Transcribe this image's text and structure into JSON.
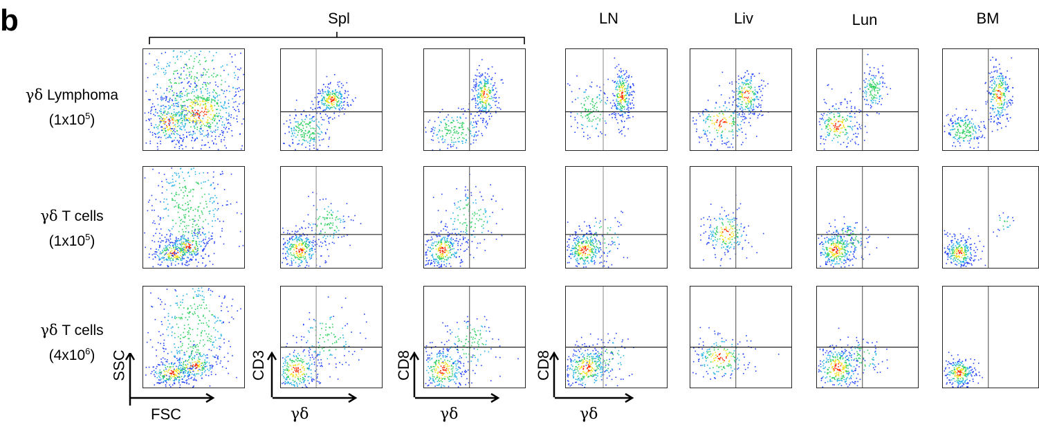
{
  "panel_letter": "b",
  "group_label": "Spl",
  "columns": [
    "LN",
    "Liv",
    "Lun",
    "BM"
  ],
  "rows": [
    {
      "line1_greek": "γδ",
      "line1_rest": " Lymphoma",
      "line2_prefix": "(1x10",
      "line2_sup": "5",
      "line2_suffix": ")"
    },
    {
      "line1_greek": "γδ",
      "line1_rest": " T cells",
      "line2_prefix": "(1x10",
      "line2_sup": "5",
      "line2_suffix": ")"
    },
    {
      "line1_greek": "γδ",
      "line1_rest": " T cells",
      "line2_prefix": "(4x10",
      "line2_sup": "6",
      "line2_suffix": ")"
    }
  ],
  "axes": {
    "scatter_x": "FSC",
    "scatter_y": "SSC",
    "plot2_x": "γδ",
    "plot2_y": "CD3",
    "plot3_x": "γδ",
    "plot3_y": "CD8",
    "plot4_x": "γδ",
    "plot4_y": "CD8"
  },
  "colors": {
    "low": "#1f3fff",
    "mid": "#2fd060",
    "high": "#ff2a00",
    "axis": "#000000",
    "gate": "#222222"
  }
}
